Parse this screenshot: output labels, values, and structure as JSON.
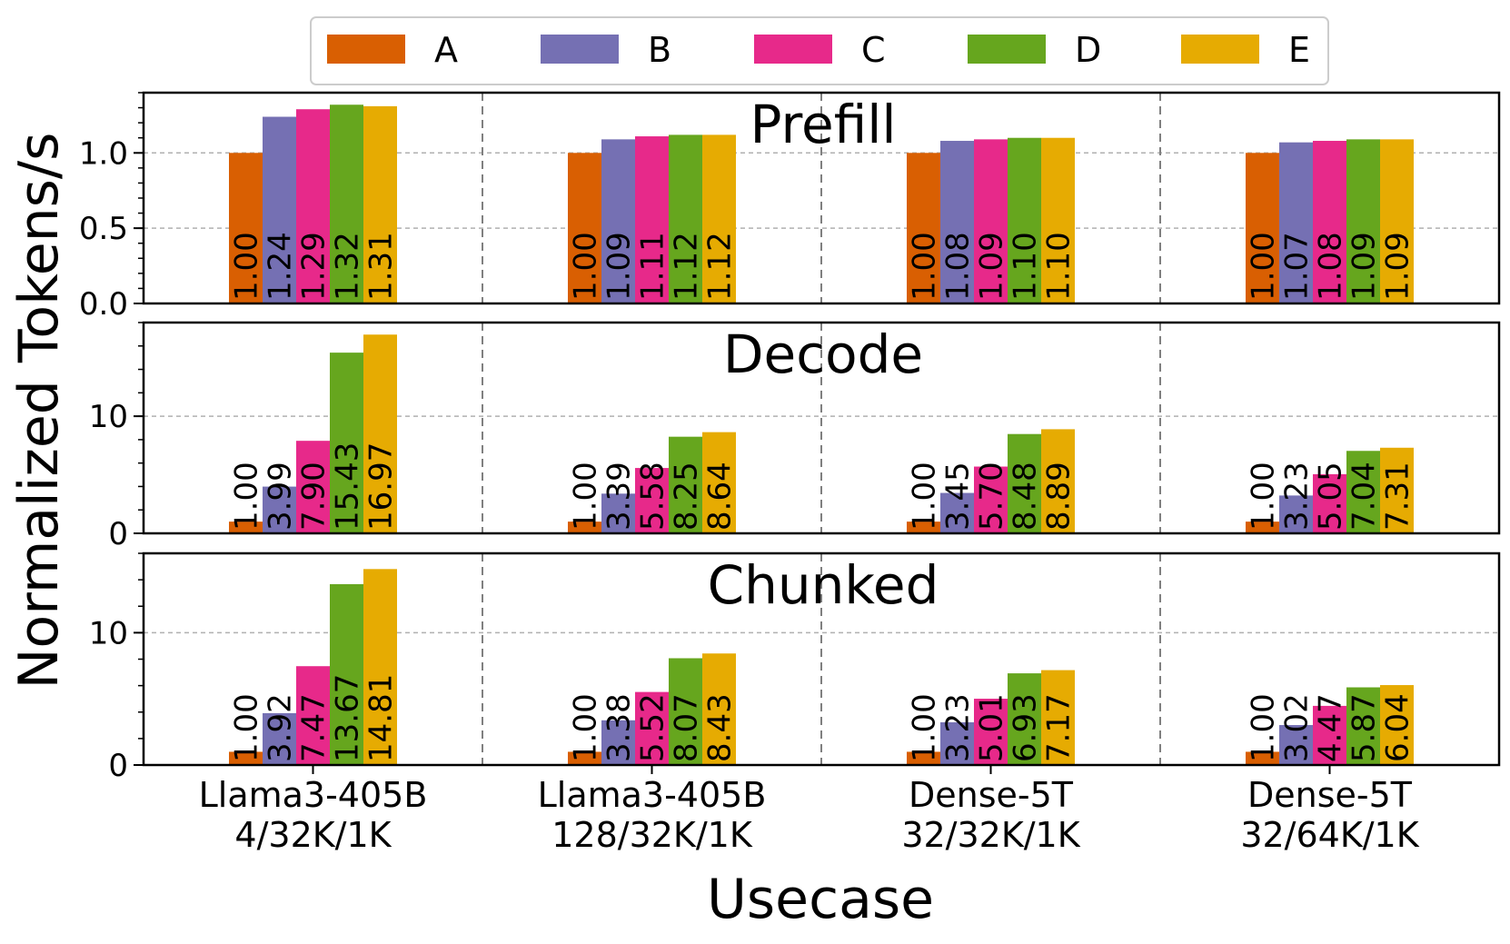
{
  "chart_data": {
    "type": "bar",
    "ylabel": "Normalized Tokens/s",
    "xlabel": "Usecase",
    "categories": [
      [
        "Llama3-405B",
        "4/32K/1K"
      ],
      [
        "Llama3-405B",
        "128/32K/1K"
      ],
      [
        "Dense-5T",
        "32/32K/1K"
      ],
      [
        "Dense-5T",
        "32/64K/1K"
      ]
    ],
    "series_names": [
      "A",
      "B",
      "C",
      "D",
      "E"
    ],
    "colors": [
      "#d95f02",
      "#7570b3",
      "#e7298a",
      "#66a61e",
      "#e6ab02"
    ],
    "legend_placement": "top-center",
    "grid": true,
    "panels": [
      {
        "title": "Prefill",
        "ylim": [
          0,
          1.4
        ],
        "yticks": [
          0.0,
          0.5,
          1.0
        ],
        "ytick_labels": [
          "0.0",
          "0.5",
          "1.0"
        ],
        "values": [
          [
            1.0,
            1.24,
            1.29,
            1.32,
            1.31
          ],
          [
            1.0,
            1.09,
            1.11,
            1.12,
            1.12
          ],
          [
            1.0,
            1.08,
            1.09,
            1.1,
            1.1
          ],
          [
            1.0,
            1.07,
            1.08,
            1.09,
            1.09
          ]
        ],
        "labels": [
          [
            "1.00",
            "1.24",
            "1.29",
            "1.32",
            "1.31"
          ],
          [
            "1.00",
            "1.09",
            "1.11",
            "1.12",
            "1.12"
          ],
          [
            "1.00",
            "1.08",
            "1.09",
            "1.10",
            "1.10"
          ],
          [
            "1.00",
            "1.07",
            "1.08",
            "1.09",
            "1.09"
          ]
        ]
      },
      {
        "title": "Decode",
        "ylim": [
          0,
          18
        ],
        "yticks": [
          0,
          10
        ],
        "ytick_labels": [
          "0",
          "10"
        ],
        "values": [
          [
            1.0,
            3.99,
            7.9,
            15.43,
            16.97
          ],
          [
            1.0,
            3.39,
            5.58,
            8.25,
            8.64
          ],
          [
            1.0,
            3.45,
            5.7,
            8.48,
            8.89
          ],
          [
            1.0,
            3.23,
            5.05,
            7.04,
            7.31
          ]
        ],
        "labels": [
          [
            "1.00",
            "3.99",
            "7.90",
            "15.43",
            "16.97"
          ],
          [
            "1.00",
            "3.39",
            "5.58",
            "8.25",
            "8.64"
          ],
          [
            "1.00",
            "3.45",
            "5.70",
            "8.48",
            "8.89"
          ],
          [
            "1.00",
            "3.23",
            "5.05",
            "7.04",
            "7.31"
          ]
        ]
      },
      {
        "title": "Chunked",
        "ylim": [
          0,
          16
        ],
        "yticks": [
          0,
          10
        ],
        "ytick_labels": [
          "0",
          "10"
        ],
        "values": [
          [
            1.0,
            3.92,
            7.47,
            13.67,
            14.81
          ],
          [
            1.0,
            3.38,
            5.52,
            8.07,
            8.43
          ],
          [
            1.0,
            3.23,
            5.01,
            6.93,
            7.17
          ],
          [
            1.0,
            3.02,
            4.47,
            5.87,
            6.04
          ]
        ],
        "labels": [
          [
            "1.00",
            "3.92",
            "7.47",
            "13.67",
            "14.81"
          ],
          [
            "1.00",
            "3.38",
            "5.52",
            "8.07",
            "8.43"
          ],
          [
            "1.00",
            "3.23",
            "5.01",
            "6.93",
            "7.17"
          ],
          [
            "1.00",
            "3.02",
            "4.47",
            "5.87",
            "6.04"
          ]
        ]
      }
    ]
  }
}
